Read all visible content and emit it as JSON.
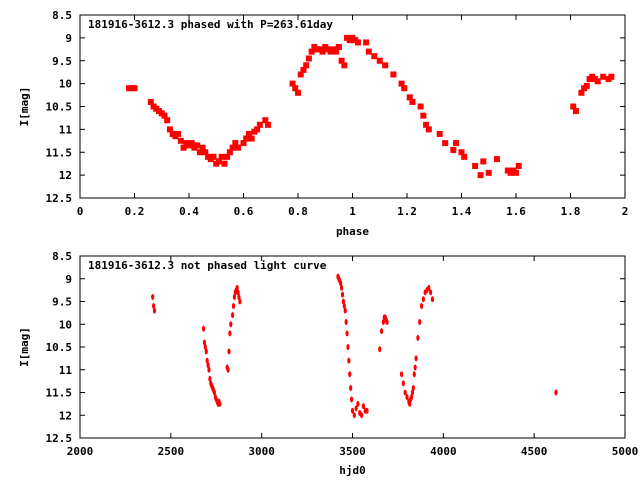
{
  "chart_data": [
    {
      "type": "scatter",
      "title": "181916-3612.3 phased with P=263.61day",
      "xlabel": "phase",
      "ylabel": "I[mag]",
      "xlim": [
        0,
        2
      ],
      "ylim": [
        8.5,
        12.5
      ],
      "y_inverted": true,
      "x_ticks": [
        "0",
        "0.2",
        "0.4",
        "0.6",
        "0.8",
        "1",
        "1.2",
        "1.4",
        "1.6",
        "1.8",
        "2"
      ],
      "x_tick_values": [
        0,
        0.2,
        0.4,
        0.6,
        0.8,
        1.0,
        1.2,
        1.4,
        1.6,
        1.8,
        2.0
      ],
      "y_ticks": [
        "8.5",
        "9",
        "9.5",
        "10",
        "10.5",
        "11",
        "11.5",
        "12",
        "12.5"
      ],
      "y_tick_values": [
        8.5,
        9,
        9.5,
        10,
        10.5,
        11,
        11.5,
        12,
        12.5
      ],
      "marker_color": "#ff0000",
      "grid": false,
      "series": [
        {
          "x": [
            0.18,
            0.19,
            0.2,
            0.26,
            0.27,
            0.28,
            0.29,
            0.3,
            0.31,
            0.32,
            0.33,
            0.34,
            0.35,
            0.36,
            0.37,
            0.38,
            0.39,
            0.4,
            0.41,
            0.42,
            0.43,
            0.44,
            0.45,
            0.46,
            0.47,
            0.48,
            0.49,
            0.5,
            0.51,
            0.52,
            0.53,
            0.54,
            0.55,
            0.56,
            0.57,
            0.58,
            0.6,
            0.61,
            0.62,
            0.63,
            0.64,
            0.65,
            0.66,
            0.68,
            0.69,
            0.78,
            0.79,
            0.8,
            0.81,
            0.82,
            0.83,
            0.84,
            0.85,
            0.86,
            0.87,
            0.88,
            0.89,
            0.9,
            0.91,
            0.92,
            0.93,
            0.94,
            0.95,
            0.96,
            0.97,
            0.98,
            0.99,
            1.0,
            1.01,
            1.02,
            1.05,
            1.06,
            1.08,
            1.1,
            1.12,
            1.15,
            1.18,
            1.19,
            1.21,
            1.22,
            1.25,
            1.26,
            1.27,
            1.28,
            1.32,
            1.34,
            1.37,
            1.38,
            1.4,
            1.41,
            1.45,
            1.47,
            1.48,
            1.5,
            1.53,
            1.57,
            1.58,
            1.59,
            1.6,
            1.61,
            1.81,
            1.82,
            1.84,
            1.85,
            1.86,
            1.87,
            1.88,
            1.89,
            1.9,
            1.92,
            1.94,
            1.95
          ],
          "y": [
            10.1,
            10.1,
            10.1,
            10.4,
            10.5,
            10.55,
            10.6,
            10.65,
            10.7,
            10.8,
            11.0,
            11.1,
            11.15,
            11.1,
            11.25,
            11.4,
            11.3,
            11.35,
            11.3,
            11.4,
            11.35,
            11.5,
            11.4,
            11.5,
            11.6,
            11.65,
            11.6,
            11.75,
            11.7,
            11.6,
            11.75,
            11.6,
            11.5,
            11.4,
            11.3,
            11.4,
            11.3,
            11.2,
            11.1,
            11.2,
            11.05,
            11.0,
            10.9,
            10.8,
            10.9,
            10.0,
            10.1,
            10.2,
            9.8,
            9.7,
            9.6,
            9.45,
            9.3,
            9.2,
            9.25,
            9.25,
            9.3,
            9.2,
            9.25,
            9.3,
            9.25,
            9.3,
            9.2,
            9.5,
            9.6,
            9.0,
            9.05,
            9.0,
            9.05,
            9.1,
            9.1,
            9.3,
            9.4,
            9.5,
            9.6,
            9.8,
            10.0,
            10.1,
            10.3,
            10.4,
            10.5,
            10.7,
            10.9,
            11.0,
            11.1,
            11.3,
            11.45,
            11.3,
            11.5,
            11.6,
            11.8,
            12.0,
            11.7,
            11.95,
            11.65,
            11.9,
            11.95,
            11.9,
            11.95,
            11.8,
            10.5,
            10.6,
            10.2,
            10.1,
            10.05,
            9.9,
            9.85,
            9.9,
            9.95,
            9.85,
            9.9,
            9.85
          ]
        }
      ]
    },
    {
      "type": "scatter",
      "title": "181916-3612.3 not phased light curve",
      "xlabel": "hjd0",
      "ylabel": "I[mag]",
      "xlim": [
        2000,
        5000
      ],
      "ylim": [
        8.5,
        12.5
      ],
      "y_inverted": true,
      "x_ticks": [
        "2000",
        "2500",
        "3000",
        "3500",
        "4000",
        "4500",
        "5000"
      ],
      "x_tick_values": [
        2000,
        2500,
        3000,
        3500,
        4000,
        4500,
        5000
      ],
      "y_ticks": [
        "8.5",
        "9",
        "9.5",
        "10",
        "10.5",
        "11",
        "11.5",
        "12",
        "12.5"
      ],
      "y_tick_values": [
        8.5,
        9,
        9.5,
        10,
        10.5,
        11,
        11.5,
        12,
        12.5
      ],
      "marker_color": "#ff0000",
      "grid": false,
      "series": [
        {
          "x": [
            2400,
            2405,
            2410,
            2680,
            2685,
            2690,
            2695,
            2700,
            2705,
            2710,
            2715,
            2720,
            2725,
            2730,
            2735,
            2740,
            2745,
            2750,
            2755,
            2760,
            2765,
            2770,
            2810,
            2815,
            2820,
            2825,
            2830,
            2840,
            2845,
            2850,
            2855,
            2860,
            2865,
            2870,
            2875,
            2880,
            3420,
            3425,
            3430,
            3435,
            3440,
            3445,
            3450,
            3455,
            3460,
            3465,
            3470,
            3475,
            3480,
            3485,
            3490,
            3495,
            3500,
            3510,
            3520,
            3530,
            3540,
            3550,
            3560,
            3570,
            3580,
            3650,
            3660,
            3670,
            3675,
            3680,
            3685,
            3690,
            3770,
            3780,
            3790,
            3800,
            3810,
            3815,
            3820,
            3825,
            3830,
            3835,
            3840,
            3845,
            3850,
            3860,
            3870,
            3880,
            3890,
            3900,
            3910,
            3920,
            3930,
            3940,
            4620
          ],
          "y": [
            9.4,
            9.6,
            9.7,
            10.1,
            10.4,
            10.5,
            10.6,
            10.8,
            10.9,
            11.0,
            11.2,
            11.3,
            11.35,
            11.4,
            11.45,
            11.5,
            11.6,
            11.65,
            11.7,
            11.75,
            11.7,
            11.75,
            10.95,
            11.0,
            10.6,
            10.2,
            10.0,
            9.8,
            9.6,
            9.4,
            9.3,
            9.25,
            9.2,
            9.3,
            9.4,
            9.5,
            8.95,
            9.0,
            9.05,
            9.1,
            9.2,
            9.35,
            9.5,
            9.6,
            9.7,
            9.95,
            10.2,
            10.5,
            10.8,
            11.1,
            11.4,
            11.65,
            11.9,
            12.0,
            11.85,
            11.75,
            11.95,
            12.0,
            11.8,
            11.9,
            11.9,
            10.55,
            10.15,
            9.95,
            9.85,
            9.85,
            9.9,
            9.95,
            11.1,
            11.3,
            11.5,
            11.6,
            11.7,
            11.75,
            11.65,
            11.6,
            11.5,
            11.4,
            11.1,
            10.95,
            10.75,
            10.3,
            9.95,
            9.6,
            9.45,
            9.3,
            9.25,
            9.2,
            9.3,
            9.45,
            11.5
          ]
        }
      ]
    }
  ]
}
